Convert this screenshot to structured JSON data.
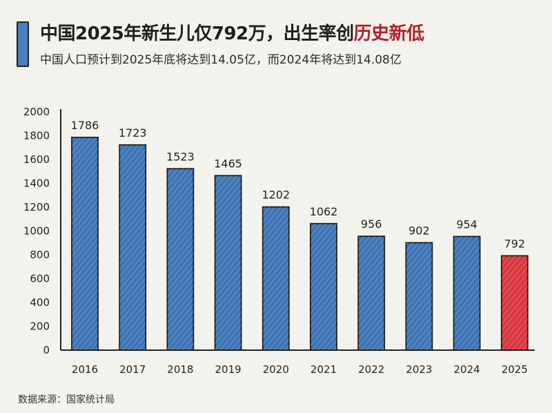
{
  "title": {
    "main": "中国2025年新生儿仅792万，出生率创",
    "highlight": "历史新低"
  },
  "subtitle": "中国人口预计到2025年底将达到14.05亿，而2024年将达到14.08亿",
  "source": "数据来源：国家统计局",
  "colors": {
    "bar": "#3f74b5",
    "highlight_bar": "#d9363d",
    "highlight_label": "#c0262e",
    "title_highlight": "#b3202a"
  },
  "chart_data": {
    "type": "bar",
    "categories": [
      "2016",
      "2017",
      "2018",
      "2019",
      "2020",
      "2021",
      "2022",
      "2023",
      "2024",
      "2025"
    ],
    "values": [
      1786,
      1723,
      1523,
      1465,
      1202,
      1062,
      956,
      902,
      954,
      792
    ],
    "highlight_index": 9,
    "ylim": [
      0,
      2000
    ],
    "yticks": [
      0,
      200,
      400,
      600,
      800,
      1000,
      1200,
      1400,
      1600,
      1800,
      2000
    ],
    "grid": false,
    "title": "",
    "xlabel": "",
    "ylabel": ""
  }
}
